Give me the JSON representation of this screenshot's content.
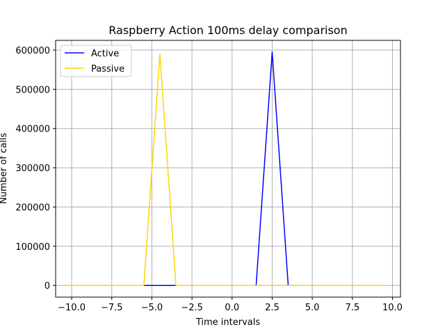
{
  "chart_data": {
    "type": "line",
    "title": "Raspberry Action 100ms delay comparison",
    "xlabel": "Time intervals",
    "ylabel": "Number of calls",
    "xlim": [
      -11.0,
      10.5
    ],
    "ylim": [
      -29750,
      624750
    ],
    "xticks": [
      -10.0,
      -7.5,
      -5.0,
      -2.5,
      0.0,
      2.5,
      5.0,
      7.5,
      10.0
    ],
    "xtick_labels": [
      "−10.0",
      "−7.5",
      "−5.0",
      "−2.5",
      "0.0",
      "2.5",
      "5.0",
      "7.5",
      "10.0"
    ],
    "yticks": [
      0,
      100000,
      200000,
      300000,
      400000,
      500000,
      600000
    ],
    "ytick_labels": [
      "0",
      "100000",
      "200000",
      "300000",
      "400000",
      "500000",
      "600000"
    ],
    "grid": true,
    "legend_position": "top-left",
    "series": [
      {
        "name": "Active",
        "color": "#0000ff",
        "x": [
          -10.5,
          -9.5,
          -8.5,
          -7.5,
          -6.5,
          -5.5,
          -4.5,
          -3.5,
          -2.5,
          -1.5,
          -0.5,
          0.5,
          1.5,
          2.5,
          3.5,
          4.5,
          5.5,
          6.5,
          7.5,
          8.5,
          9.5
        ],
        "y": [
          0,
          0,
          0,
          0,
          0,
          0,
          0,
          0,
          0,
          0,
          0,
          0,
          0,
          595000,
          0,
          0,
          0,
          0,
          0,
          0,
          0
        ]
      },
      {
        "name": "Passive",
        "color": "#ffd700",
        "x": [
          -10.5,
          -9.5,
          -8.5,
          -7.5,
          -6.5,
          -5.5,
          -4.5,
          -3.5,
          -2.5,
          -1.5,
          -0.5,
          0.5,
          1.5,
          2.5,
          3.5,
          4.5,
          5.5,
          6.5,
          7.5,
          8.5,
          9.5
        ],
        "y": [
          0,
          0,
          0,
          0,
          0,
          0,
          590000,
          0,
          0,
          0,
          0,
          0,
          0,
          0,
          0,
          0,
          0,
          0,
          0,
          0,
          0
        ]
      }
    ]
  }
}
